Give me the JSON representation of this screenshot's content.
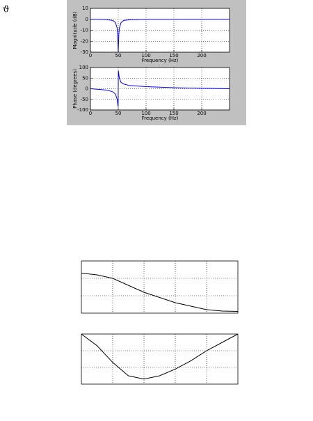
{
  "mark": "ϑ",
  "chart_data": [
    {
      "type": "line",
      "xlabel": "Frequency (Hz)",
      "ylabel": "Magnitude (dB)",
      "x": [
        0,
        10,
        20,
        30,
        40,
        45,
        48,
        49,
        50,
        51,
        52,
        55,
        60,
        70,
        100,
        150,
        200,
        250
      ],
      "values": [
        0,
        0,
        -0.1,
        -0.3,
        -1,
        -3,
        -8,
        -14,
        -30,
        -14,
        -8,
        -3,
        -1,
        -0.4,
        -0.1,
        0,
        0,
        0
      ],
      "color": "#0000ff",
      "xlim": [
        0,
        250
      ],
      "ylim": [
        -30,
        10
      ],
      "xticks": [
        0,
        50,
        100,
        150,
        200
      ],
      "yticks": [
        -30,
        -20,
        -10,
        0,
        10
      ],
      "grid": true,
      "tick_labels": true
    },
    {
      "type": "line",
      "xlabel": "Frequency (Hz)",
      "ylabel": "Phase (degrees)",
      "x": [
        0,
        10,
        20,
        30,
        40,
        45,
        48,
        49.8,
        50.2,
        52,
        55,
        60,
        70,
        100,
        150,
        200,
        250
      ],
      "values": [
        0,
        -2,
        -4,
        -7,
        -14,
        -25,
        -50,
        -85,
        85,
        50,
        30,
        22,
        15,
        10,
        5,
        2,
        0
      ],
      "color": "#0000ff",
      "xlim": [
        0,
        250
      ],
      "ylim": [
        -100,
        100
      ],
      "xticks": [
        0,
        50,
        100,
        150,
        200
      ],
      "yticks": [
        -100,
        -50,
        0,
        50,
        100
      ],
      "grid": true,
      "tick_labels": true
    },
    {
      "type": "line",
      "x": [
        0,
        0.5,
        1,
        1.5,
        2,
        2.5,
        3,
        3.5,
        4,
        4.5,
        5
      ],
      "values": [
        2.3,
        2.2,
        2.0,
        1.6,
        1.2,
        0.9,
        0.6,
        0.4,
        0.2,
        0.12,
        0.1
      ],
      "color": "#000000",
      "xlim": [
        0,
        5
      ],
      "ylim": [
        0,
        3
      ],
      "xticks": [
        1,
        2,
        3,
        4
      ],
      "yticks": [
        1,
        2
      ],
      "grid": true,
      "tick_labels": false
    },
    {
      "type": "line",
      "x": [
        0,
        0.5,
        1,
        1.5,
        2,
        2.5,
        3,
        3.5,
        4,
        4.5,
        5
      ],
      "values": [
        3.0,
        2.3,
        1.3,
        0.5,
        0.3,
        0.5,
        0.9,
        1.4,
        2.0,
        2.5,
        3.0
      ],
      "color": "#000000",
      "xlim": [
        0,
        5
      ],
      "ylim": [
        0,
        3
      ],
      "xticks": [
        1,
        2,
        3,
        4
      ],
      "yticks": [
        1,
        2
      ],
      "grid": true,
      "tick_labels": false
    }
  ]
}
